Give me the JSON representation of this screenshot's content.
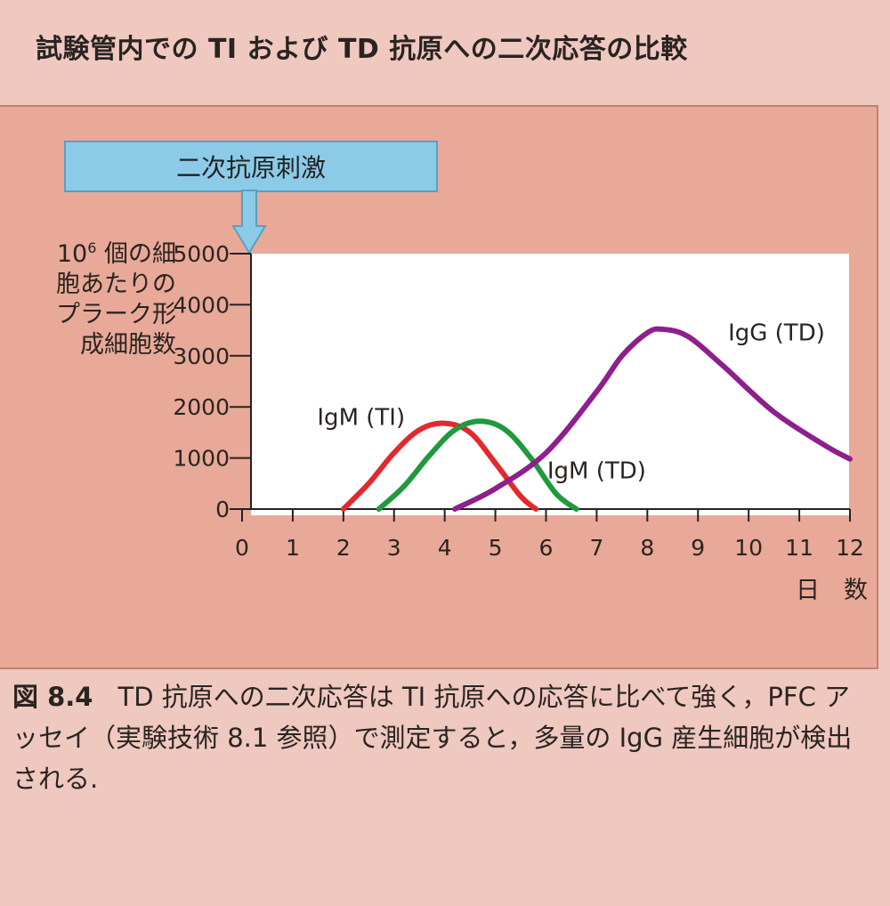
{
  "title": "試験管内での TI および TD 抗原への二次応答の比較",
  "stimulus_label": "二次抗原刺激",
  "caption": {
    "figure_number": "図 8.4",
    "text": "TD 抗原への二次応答は TI 抗原への応答に比べて強く，PFC アッセイ（実験技術 8.1 参照）で測定すると，多量の IgG 産生細胞が検出される."
  },
  "chart_data": {
    "type": "line",
    "title": "",
    "xlabel": "日　数",
    "ylabel_prefix": "10",
    "ylabel_sup": "6",
    "ylabel_rest": " 個の細\n胞あたりの\nプラーク形\n成細胞数",
    "xlim": [
      0,
      12
    ],
    "ylim": [
      0,
      5000
    ],
    "x_ticks": [
      0,
      1,
      2,
      3,
      4,
      5,
      6,
      7,
      8,
      9,
      10,
      11,
      12
    ],
    "y_ticks": [
      0,
      1000,
      2000,
      3000,
      4000,
      5000
    ],
    "grid": false,
    "stimulus_day": 0,
    "series": [
      {
        "name": "IgM (TI)",
        "color": "#e3282e",
        "points": [
          [
            2.0,
            0
          ],
          [
            2.5,
            500
          ],
          [
            3.0,
            1100
          ],
          [
            3.5,
            1550
          ],
          [
            4.0,
            1680
          ],
          [
            4.5,
            1500
          ],
          [
            5.0,
            900
          ],
          [
            5.5,
            250
          ],
          [
            5.8,
            0
          ]
        ]
      },
      {
        "name": "IgM (TD)",
        "color": "#1f9a3c",
        "points": [
          [
            2.7,
            0
          ],
          [
            3.2,
            450
          ],
          [
            3.7,
            1050
          ],
          [
            4.2,
            1550
          ],
          [
            4.7,
            1720
          ],
          [
            5.2,
            1550
          ],
          [
            5.7,
            1000
          ],
          [
            6.2,
            300
          ],
          [
            6.6,
            0
          ]
        ]
      },
      {
        "name": "IgG (TD)",
        "color": "#8e1f8c",
        "points": [
          [
            4.2,
            0
          ],
          [
            5.0,
            400
          ],
          [
            6.0,
            1100
          ],
          [
            7.0,
            2300
          ],
          [
            7.5,
            3000
          ],
          [
            8.0,
            3450
          ],
          [
            8.3,
            3520
          ],
          [
            8.8,
            3380
          ],
          [
            9.5,
            2800
          ],
          [
            10.5,
            1900
          ],
          [
            11.5,
            1250
          ],
          [
            12.0,
            980
          ]
        ]
      }
    ]
  }
}
